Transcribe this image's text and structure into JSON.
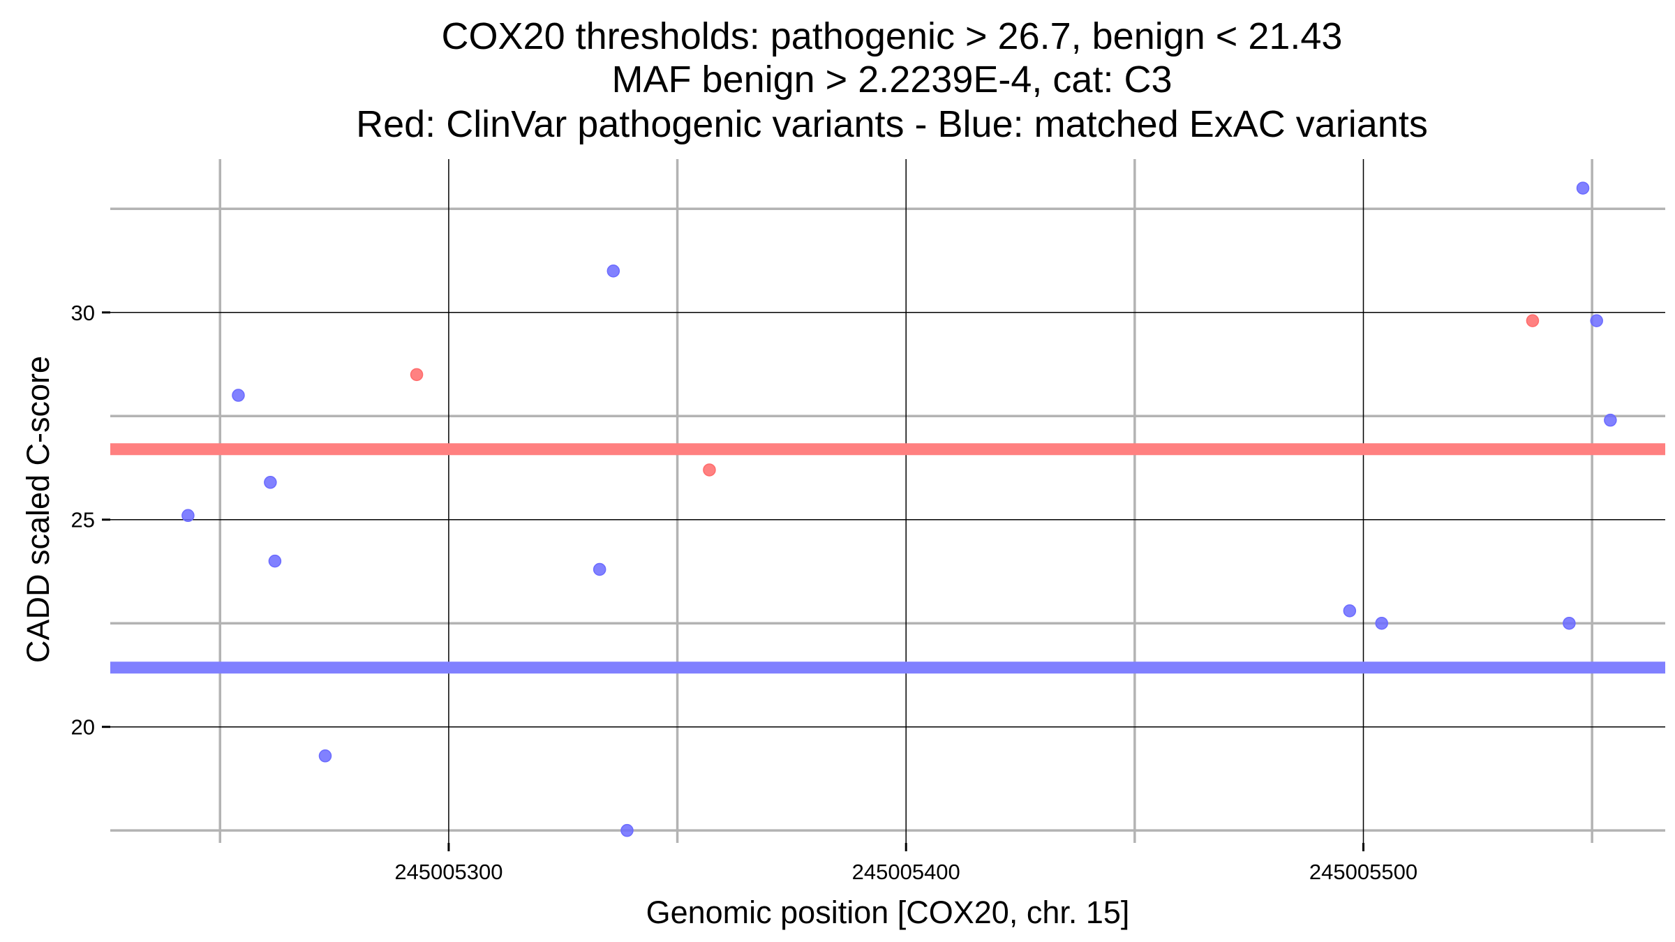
{
  "chart_data": {
    "type": "scatter",
    "title_lines": [
      "COX20 thresholds: pathogenic > 26.7, benign < 21.43",
      "MAF benign > 2.2239E-4, cat: C3",
      "Red: ClinVar pathogenic variants - Blue: matched ExAC variants"
    ],
    "xlabel": "Genomic position [COX20, chr. 15]",
    "ylabel": "CADD scaled C-score",
    "xlim": [
      245005226,
      245005566
    ],
    "ylim": [
      17.2,
      33.7
    ],
    "x_major_ticks": [
      245005300,
      245005400,
      245005500
    ],
    "x_tick_labels": [
      "245005300",
      "245005400",
      "245005500"
    ],
    "x_minor_ticks": [
      245005250,
      245005350,
      245005450,
      245005550
    ],
    "y_major_ticks": [
      20,
      25,
      30
    ],
    "y_tick_labels": [
      "20",
      "25",
      "30"
    ],
    "y_minor_ticks": [
      17.5,
      22.5,
      27.5,
      32.5
    ],
    "grid": true,
    "thresholds": [
      {
        "name": "pathogenic",
        "value": 26.7,
        "color": "#ff8080"
      },
      {
        "name": "benign",
        "value": 21.43,
        "color": "#8080ff"
      }
    ],
    "series": [
      {
        "name": "ClinVar pathogenic",
        "color": "#ff6b6b",
        "points": [
          {
            "x": 245005293,
            "y": 28.5
          },
          {
            "x": 245005357,
            "y": 26.2
          },
          {
            "x": 245005537,
            "y": 29.8
          }
        ]
      },
      {
        "name": "matched ExAC",
        "color": "#6b6bff",
        "points": [
          {
            "x": 245005243,
            "y": 25.1
          },
          {
            "x": 245005254,
            "y": 28.0
          },
          {
            "x": 245005261,
            "y": 25.9
          },
          {
            "x": 245005262,
            "y": 24.0
          },
          {
            "x": 245005273,
            "y": 19.3
          },
          {
            "x": 245005336,
            "y": 31.0
          },
          {
            "x": 245005333,
            "y": 23.8
          },
          {
            "x": 245005339,
            "y": 17.5
          },
          {
            "x": 245005497,
            "y": 22.8
          },
          {
            "x": 245005504,
            "y": 22.5
          },
          {
            "x": 245005545,
            "y": 22.5
          },
          {
            "x": 245005548,
            "y": 33.0
          },
          {
            "x": 245005551,
            "y": 29.8
          },
          {
            "x": 245005554,
            "y": 27.4
          }
        ]
      }
    ]
  }
}
